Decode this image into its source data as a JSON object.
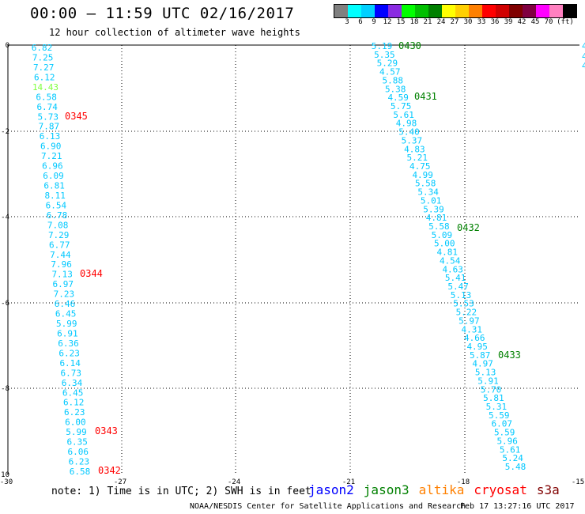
{
  "header": {
    "title": "00:00 – 11:59 UTC 02/16/2017",
    "subtitle": "12 hour collection of altimeter wave heights"
  },
  "legend": {
    "colors": [
      "#808080",
      "#00ffff",
      "#00d0ff",
      "#0000ff",
      "#8a2be2",
      "#00ff00",
      "#00c000",
      "#008000",
      "#ffff00",
      "#ffd000",
      "#ff8000",
      "#ff0000",
      "#d00000",
      "#800000",
      "#800040",
      "#ff00ff",
      "#ff80c0",
      "#000000"
    ],
    "labels": [
      "3",
      "6",
      "9",
      "12",
      "15",
      "18",
      "21",
      "24",
      "27",
      "30",
      "33",
      "36",
      "39",
      "42",
      "45",
      "70",
      "(ft)"
    ]
  },
  "axes": {
    "x_ticks": [
      "-30",
      "-27",
      "-24",
      "-21",
      "-18",
      "-15"
    ],
    "y_ticks": [
      "0",
      "-2",
      "-4",
      "-6",
      "-8",
      "-10"
    ]
  },
  "track_left": [
    {
      "v": "6.82"
    },
    {
      "v": "7.25"
    },
    {
      "v": "7.27"
    },
    {
      "v": "6.12"
    },
    {
      "v": "14.43",
      "c": "#80ff40"
    },
    {
      "v": "6.58"
    },
    {
      "v": "6.74"
    },
    {
      "v": "5.73"
    },
    {
      "v": "7.87"
    },
    {
      "v": "6.13"
    },
    {
      "v": "6.90"
    },
    {
      "v": "7.21"
    },
    {
      "v": "6.96"
    },
    {
      "v": "6.09"
    },
    {
      "v": "6.81"
    },
    {
      "v": "8.11"
    },
    {
      "v": "6.54"
    },
    {
      "v": "6.78"
    },
    {
      "v": "7.08"
    },
    {
      "v": "7.29"
    },
    {
      "v": "6.77"
    },
    {
      "v": "7.44"
    },
    {
      "v": "7.96"
    },
    {
      "v": "7.13"
    },
    {
      "v": "6.97"
    },
    {
      "v": "7.23"
    },
    {
      "v": "6.46"
    },
    {
      "v": "6.45"
    },
    {
      "v": "5.99"
    },
    {
      "v": "6.91"
    },
    {
      "v": "6.36"
    },
    {
      "v": "6.23"
    },
    {
      "v": "6.14"
    },
    {
      "v": "6.73"
    },
    {
      "v": "6.34"
    },
    {
      "v": "6.45"
    },
    {
      "v": "6.12"
    },
    {
      "v": "6.23"
    },
    {
      "v": "6.00"
    },
    {
      "v": "5.99"
    },
    {
      "v": "6.35"
    },
    {
      "v": "6.06"
    },
    {
      "v": "6.23"
    },
    {
      "v": "6.58"
    }
  ],
  "track_right": [
    {
      "v": "5.19"
    },
    {
      "v": "5.35"
    },
    {
      "v": "5.29"
    },
    {
      "v": "4.57"
    },
    {
      "v": "5.88"
    },
    {
      "v": "5.38"
    },
    {
      "v": "4.59"
    },
    {
      "v": "5.75"
    },
    {
      "v": "5.61"
    },
    {
      "v": "4.98"
    },
    {
      "v": "5.40"
    },
    {
      "v": "5.37"
    },
    {
      "v": "4.83"
    },
    {
      "v": "5.21"
    },
    {
      "v": "4.75"
    },
    {
      "v": "4.99"
    },
    {
      "v": "5.58"
    },
    {
      "v": "5.34"
    },
    {
      "v": "5.01"
    },
    {
      "v": "5.39"
    },
    {
      "v": "4.81"
    },
    {
      "v": "5.58"
    },
    {
      "v": "5.09"
    },
    {
      "v": "5.00"
    },
    {
      "v": "4.81"
    },
    {
      "v": "4.54"
    },
    {
      "v": "4.63"
    },
    {
      "v": "5.41"
    },
    {
      "v": "5.47"
    },
    {
      "v": "5.13"
    },
    {
      "v": "5.53"
    },
    {
      "v": "5.22"
    },
    {
      "v": "5.97"
    },
    {
      "v": "4.31"
    },
    {
      "v": "4.66"
    },
    {
      "v": "4.95"
    },
    {
      "v": "5.87"
    },
    {
      "v": "4.97"
    },
    {
      "v": "5.13"
    },
    {
      "v": "5.91"
    },
    {
      "v": "5.70"
    },
    {
      "v": "5.81"
    },
    {
      "v": "5.31"
    },
    {
      "v": "5.59"
    },
    {
      "v": "6.07"
    },
    {
      "v": "5.59"
    },
    {
      "v": "5.96"
    },
    {
      "v": "5.61"
    },
    {
      "v": "5.24"
    },
    {
      "v": "5.48"
    }
  ],
  "time_labels": [
    {
      "t": "0345",
      "c": "#ff0000"
    },
    {
      "t": "0344",
      "c": "#ff0000"
    },
    {
      "t": "0343",
      "c": "#ff0000"
    },
    {
      "t": "0342",
      "c": "#ff0000"
    },
    {
      "t": "0430",
      "c": "#008000"
    },
    {
      "t": "0431",
      "c": "#008000"
    },
    {
      "t": "0432",
      "c": "#008000"
    },
    {
      "t": "0433",
      "c": "#008000"
    }
  ],
  "edge_values": [
    "4",
    "4",
    "4"
  ],
  "value_color": "#00c8ff",
  "footer": {
    "note": "note: 1) Time is in UTC; 2) SWH is in feet",
    "satellites": [
      {
        "name": "jason2",
        "color": "#0000ff"
      },
      {
        "name": "jason3",
        "color": "#008000"
      },
      {
        "name": "altika",
        "color": "#ff8000"
      },
      {
        "name": "cryosat",
        "color": "#ff0000"
      },
      {
        "name": "s3a",
        "color": "#800000"
      }
    ],
    "credit": "NOAA/NESDIS Center for Satellite Applications and Research",
    "timestamp": "Feb 17 13:27:16 UTC 2017"
  }
}
